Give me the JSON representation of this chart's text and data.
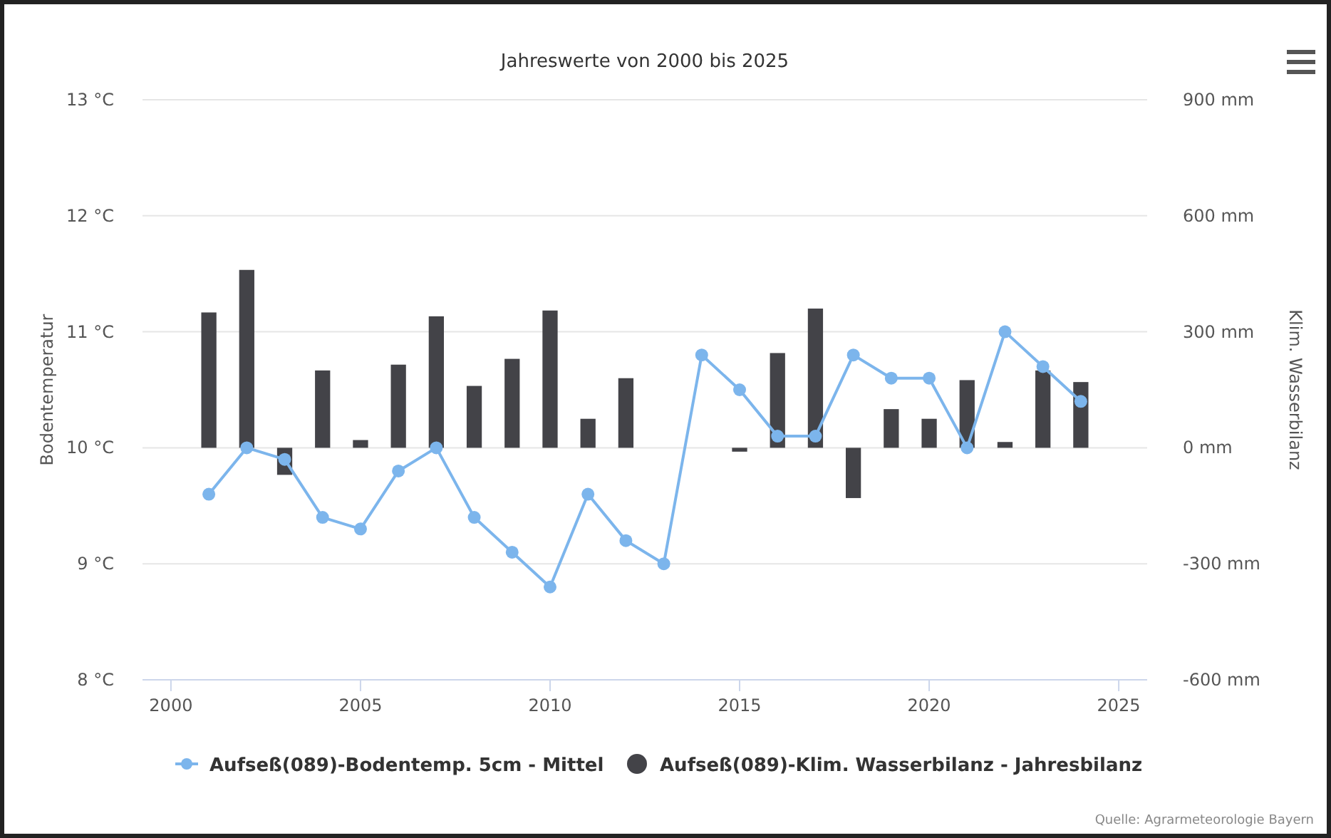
{
  "chart_data": {
    "type": "bar",
    "title": "Jahreswerte von 2000 bis 2025",
    "ylabel": "Bodentemperatur",
    "y2label": "Klim. Wasserbilanz",
    "x": [
      2001,
      2002,
      2003,
      2004,
      2005,
      2006,
      2007,
      2008,
      2009,
      2010,
      2011,
      2012,
      2013,
      2014,
      2015,
      2016,
      2017,
      2018,
      2019,
      2020,
      2021,
      2022,
      2023,
      2024
    ],
    "series": [
      {
        "name": "Aufseß(089)-Bodentemp. 5cm - Mittel",
        "type": "line",
        "color": "#7cb5ec",
        "marker": "circle",
        "values": [
          9.6,
          10.0,
          9.9,
          9.4,
          9.3,
          9.8,
          10.0,
          9.4,
          9.1,
          8.8,
          9.6,
          9.2,
          9.0,
          10.8,
          10.5,
          10.1,
          10.1,
          10.8,
          10.6,
          10.6,
          10.0,
          11.0,
          10.7,
          10.4
        ]
      },
      {
        "name": "Aufseß(089)-Klim. Wasserbilanz - Jahresbilanz",
        "axis": "y2",
        "color": "#434348",
        "values": [
          350,
          460,
          -70,
          200,
          20,
          215,
          340,
          160,
          230,
          355,
          75,
          180,
          null,
          null,
          -10,
          245,
          360,
          -130,
          100,
          75,
          175,
          15,
          200,
          170
        ]
      }
    ],
    "xlim": [
      1999.25,
      2025.75
    ],
    "xticks": [
      2000,
      2005,
      2010,
      2015,
      2020,
      2025
    ],
    "ylim": [
      8,
      13
    ],
    "yticks": [
      {
        "value": 8,
        "label": "8 °C"
      },
      {
        "value": 9,
        "label": "9 °C"
      },
      {
        "value": 10,
        "label": "10 °C"
      },
      {
        "value": 11,
        "label": "11 °C"
      },
      {
        "value": 12,
        "label": "12 °C"
      },
      {
        "value": 13,
        "label": "13 °C"
      }
    ],
    "y2lim": [
      -600,
      900
    ],
    "y2ticks": [
      {
        "value": -600,
        "label": "-600 mm"
      },
      {
        "value": -300,
        "label": "-300 mm"
      },
      {
        "value": 0,
        "label": "0 mm"
      },
      {
        "value": 300,
        "label": "300 mm"
      },
      {
        "value": 600,
        "label": "600 mm"
      },
      {
        "value": 900,
        "label": "900 mm"
      }
    ],
    "grid": "y",
    "legend": "bottom",
    "annotations": [
      "Quelle: Agrarmeteorologie Bayern"
    ]
  }
}
